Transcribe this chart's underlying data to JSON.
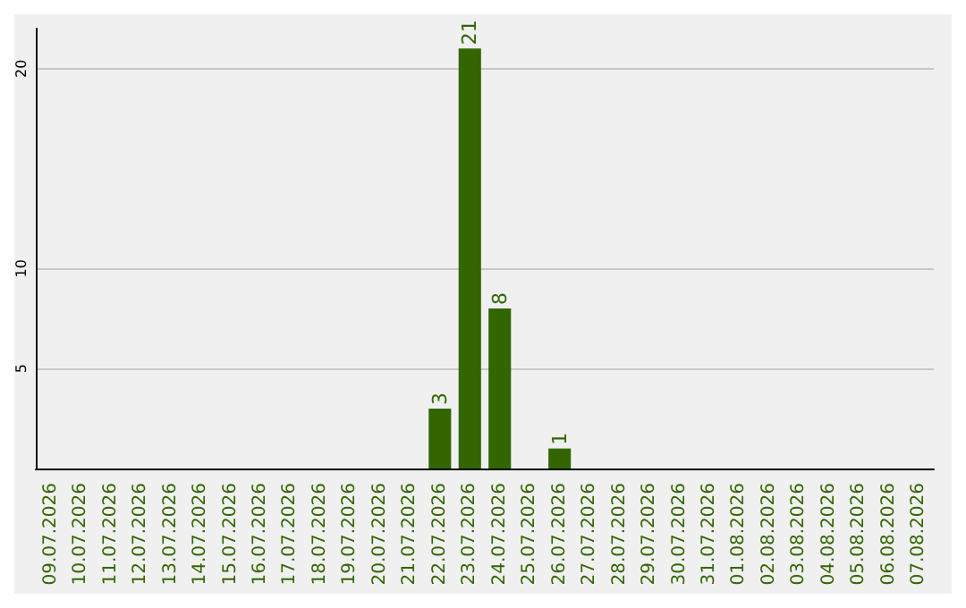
{
  "chart_data": {
    "type": "bar",
    "categories": [
      "09.07.2026",
      "10.07.2026",
      "11.07.2026",
      "12.07.2026",
      "13.07.2026",
      "14.07.2026",
      "15.07.2026",
      "16.07.2026",
      "17.07.2026",
      "18.07.2026",
      "19.07.2026",
      "20.07.2026",
      "21.07.2026",
      "22.07.2026",
      "23.07.2026",
      "24.07.2026",
      "25.07.2026",
      "26.07.2026",
      "27.07.2026",
      "28.07.2026",
      "29.07.2026",
      "30.07.2026",
      "31.07.2026",
      "01.08.2026",
      "02.08.2026",
      "03.08.2026",
      "04.08.2026",
      "05.08.2026",
      "06.08.2026",
      "07.08.2026"
    ],
    "values": [
      0,
      0,
      0,
      0,
      0,
      0,
      0,
      0,
      0,
      0,
      0,
      0,
      0,
      3,
      21,
      8,
      0,
      1,
      0,
      0,
      0,
      0,
      0,
      0,
      0,
      0,
      0,
      0,
      0,
      0
    ],
    "value_labels": [
      null,
      null,
      null,
      null,
      null,
      null,
      null,
      null,
      null,
      null,
      null,
      null,
      null,
      "3",
      "21",
      "8",
      null,
      "1",
      null,
      null,
      null,
      null,
      null,
      null,
      null,
      null,
      null,
      null,
      null,
      null
    ],
    "color": "#336600",
    "ylim": [
      0,
      22
    ],
    "yticks": [
      5,
      10,
      20
    ],
    "grid": "y"
  }
}
